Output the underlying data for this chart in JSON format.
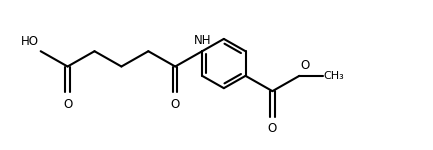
{
  "background": "#ffffff",
  "line_color": "#000000",
  "line_width": 1.5,
  "font_size": 8.5,
  "figsize": [
    4.33,
    1.5
  ],
  "dpi": 100,
  "xlim": [
    0,
    10
  ],
  "ylim": [
    0,
    3.5
  ]
}
